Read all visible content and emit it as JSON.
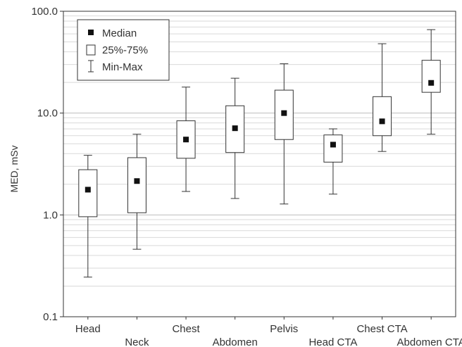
{
  "chart_data": {
    "type": "box",
    "title": "",
    "xlabel": "",
    "ylabel": "MED, mSv",
    "yscale": "log",
    "ylim": [
      0.1,
      100
    ],
    "yticks": [
      "0.1",
      "1.0",
      "10.0",
      "100.0"
    ],
    "grid": true,
    "legend_position": "top-left",
    "legend": {
      "median": "Median",
      "box": "25%-75%",
      "whisker": "Min-Max"
    },
    "categories": [
      "Head",
      "Neck",
      "Chest",
      "Abdomen",
      "Pelvis",
      "Head CTA",
      "Chest CTA",
      "Abdomen CTA"
    ],
    "boxes": [
      {
        "category": "Head",
        "min": 0.245,
        "q1": 0.96,
        "median": 1.77,
        "q3": 2.78,
        "max": 3.85
      },
      {
        "category": "Neck",
        "min": 0.46,
        "q1": 1.05,
        "median": 2.15,
        "q3": 3.65,
        "max": 6.2
      },
      {
        "category": "Chest",
        "min": 1.7,
        "q1": 3.6,
        "median": 5.5,
        "q3": 8.4,
        "max": 18.0
      },
      {
        "category": "Abdomen",
        "min": 1.45,
        "q1": 4.1,
        "median": 7.1,
        "q3": 11.8,
        "max": 22.0
      },
      {
        "category": "Pelvis",
        "min": 1.28,
        "q1": 5.5,
        "median": 10.0,
        "q3": 16.8,
        "max": 30.5
      },
      {
        "category": "Head CTA",
        "min": 1.6,
        "q1": 3.3,
        "median": 4.9,
        "q3": 6.1,
        "max": 7.0
      },
      {
        "category": "Chest CTA",
        "min": 4.2,
        "q1": 6.0,
        "median": 8.3,
        "q3": 14.5,
        "max": 48.0
      },
      {
        "category": "Abdomen CTA",
        "min": 6.2,
        "q1": 16.0,
        "median": 19.8,
        "q3": 33.0,
        "max": 66.0
      }
    ]
  }
}
